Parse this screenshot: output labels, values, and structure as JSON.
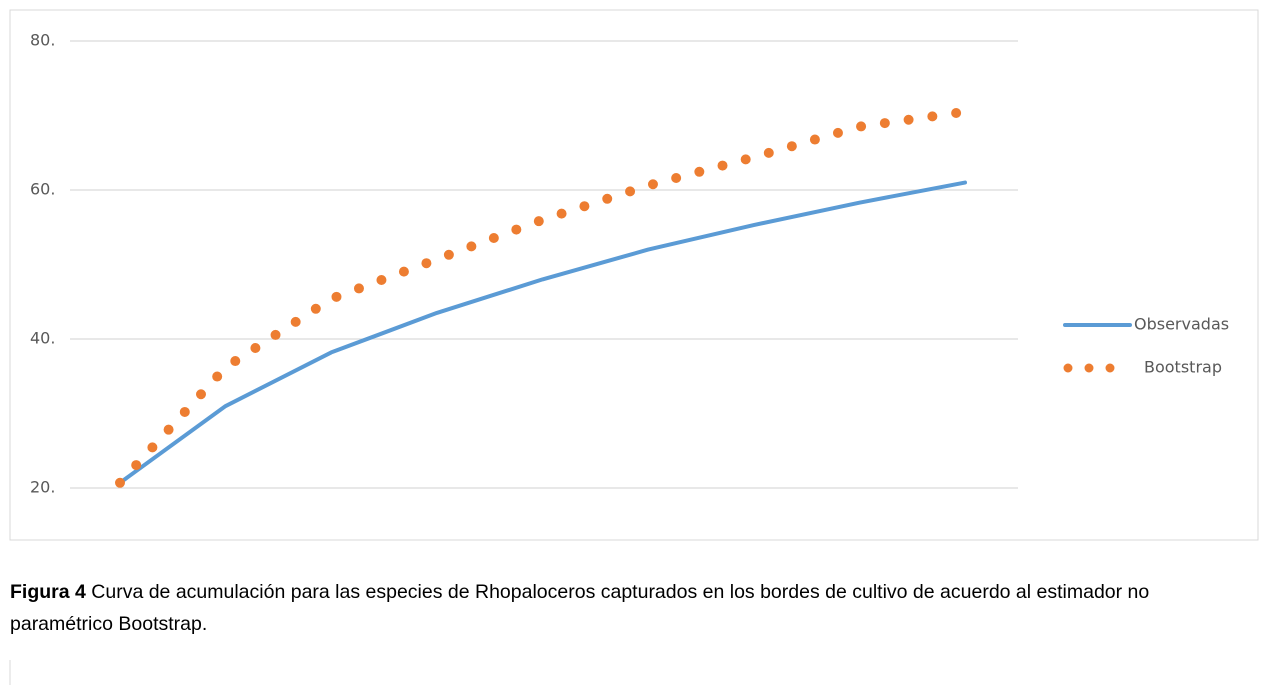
{
  "chart_data": {
    "type": "line",
    "series": [
      {
        "name": "Observadas",
        "color": "#5b9bd5",
        "style": "solid",
        "values": [
          20.7,
          31,
          38.2,
          43.5,
          48,
          52,
          55.3,
          58.3,
          61
        ]
      },
      {
        "name": "Bootstrap",
        "color": "#ed7d31",
        "style": "dotted",
        "values": [
          20.7,
          36.2,
          45.4,
          50.7,
          56,
          60.6,
          64.4,
          68.5,
          70.5
        ]
      }
    ],
    "ylim": [
      20,
      80
    ],
    "yticks": [
      {
        "value": 20,
        "label": "20."
      },
      {
        "value": 40,
        "label": "40."
      },
      {
        "value": 60,
        "label": "60."
      },
      {
        "value": 80,
        "label": "80."
      }
    ],
    "grid": true,
    "legend": "right",
    "caption_label": "Figura 4",
    "caption": "Curva de acumulación  para las especies de Rhopaloceros capturados en los bordes de cultivo de acuerdo al estimador no paramétrico Bootstrap."
  }
}
